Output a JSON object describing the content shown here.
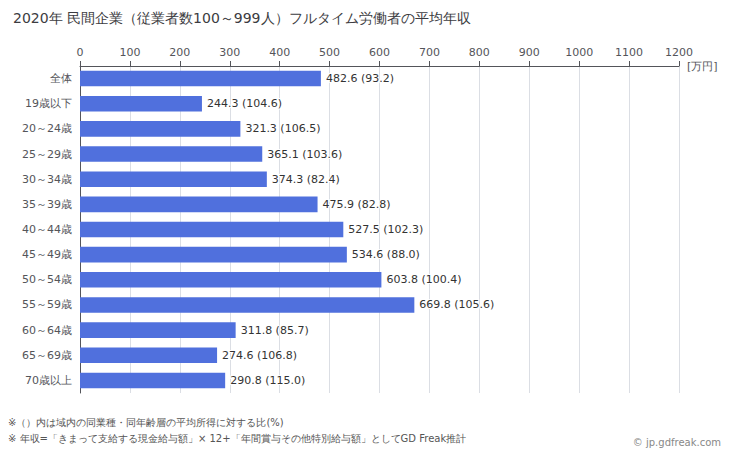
{
  "chart_data": {
    "type": "bar",
    "orientation": "horizontal",
    "title": "2020年 民間企業（従業者数100～999人）フルタイム労働者の平均年収",
    "xlabel": "[万円]",
    "categories": [
      "全体",
      "19歳以下",
      "20～24歳",
      "25～29歳",
      "30～34歳",
      "35～39歳",
      "40～44歳",
      "45～49歳",
      "50～54歳",
      "55～59歳",
      "60～64歳",
      "65～69歳",
      "70歳以上"
    ],
    "values": [
      482.6,
      244.3,
      321.3,
      365.1,
      374.3,
      475.9,
      527.5,
      534.6,
      603.8,
      669.8,
      311.8,
      274.6,
      290.8
    ],
    "ratio_labels": [
      "(93.2)",
      "(104.6)",
      "(106.5)",
      "(103.6)",
      "(82.4)",
      "(82.8)",
      "(102.3)",
      "(88.0)",
      "(100.4)",
      "(105.6)",
      "(85.7)",
      "(106.8)",
      "(115.0)"
    ],
    "data_labels": true,
    "xlim": [
      0,
      1200
    ],
    "xticks": [
      0,
      100,
      200,
      300,
      400,
      500,
      600,
      700,
      800,
      900,
      1000,
      1100,
      1200
    ],
    "grid": true,
    "annotations": [
      "※（）内は域内の同業種・同年齢層の平均所得に対する比(%)",
      "※ 年収=「きまって支給する現金給与額」× 12+「年間賞与その他特別給与額」としてGD Freak推計",
      "© jp.gdfreak.com"
    ]
  }
}
